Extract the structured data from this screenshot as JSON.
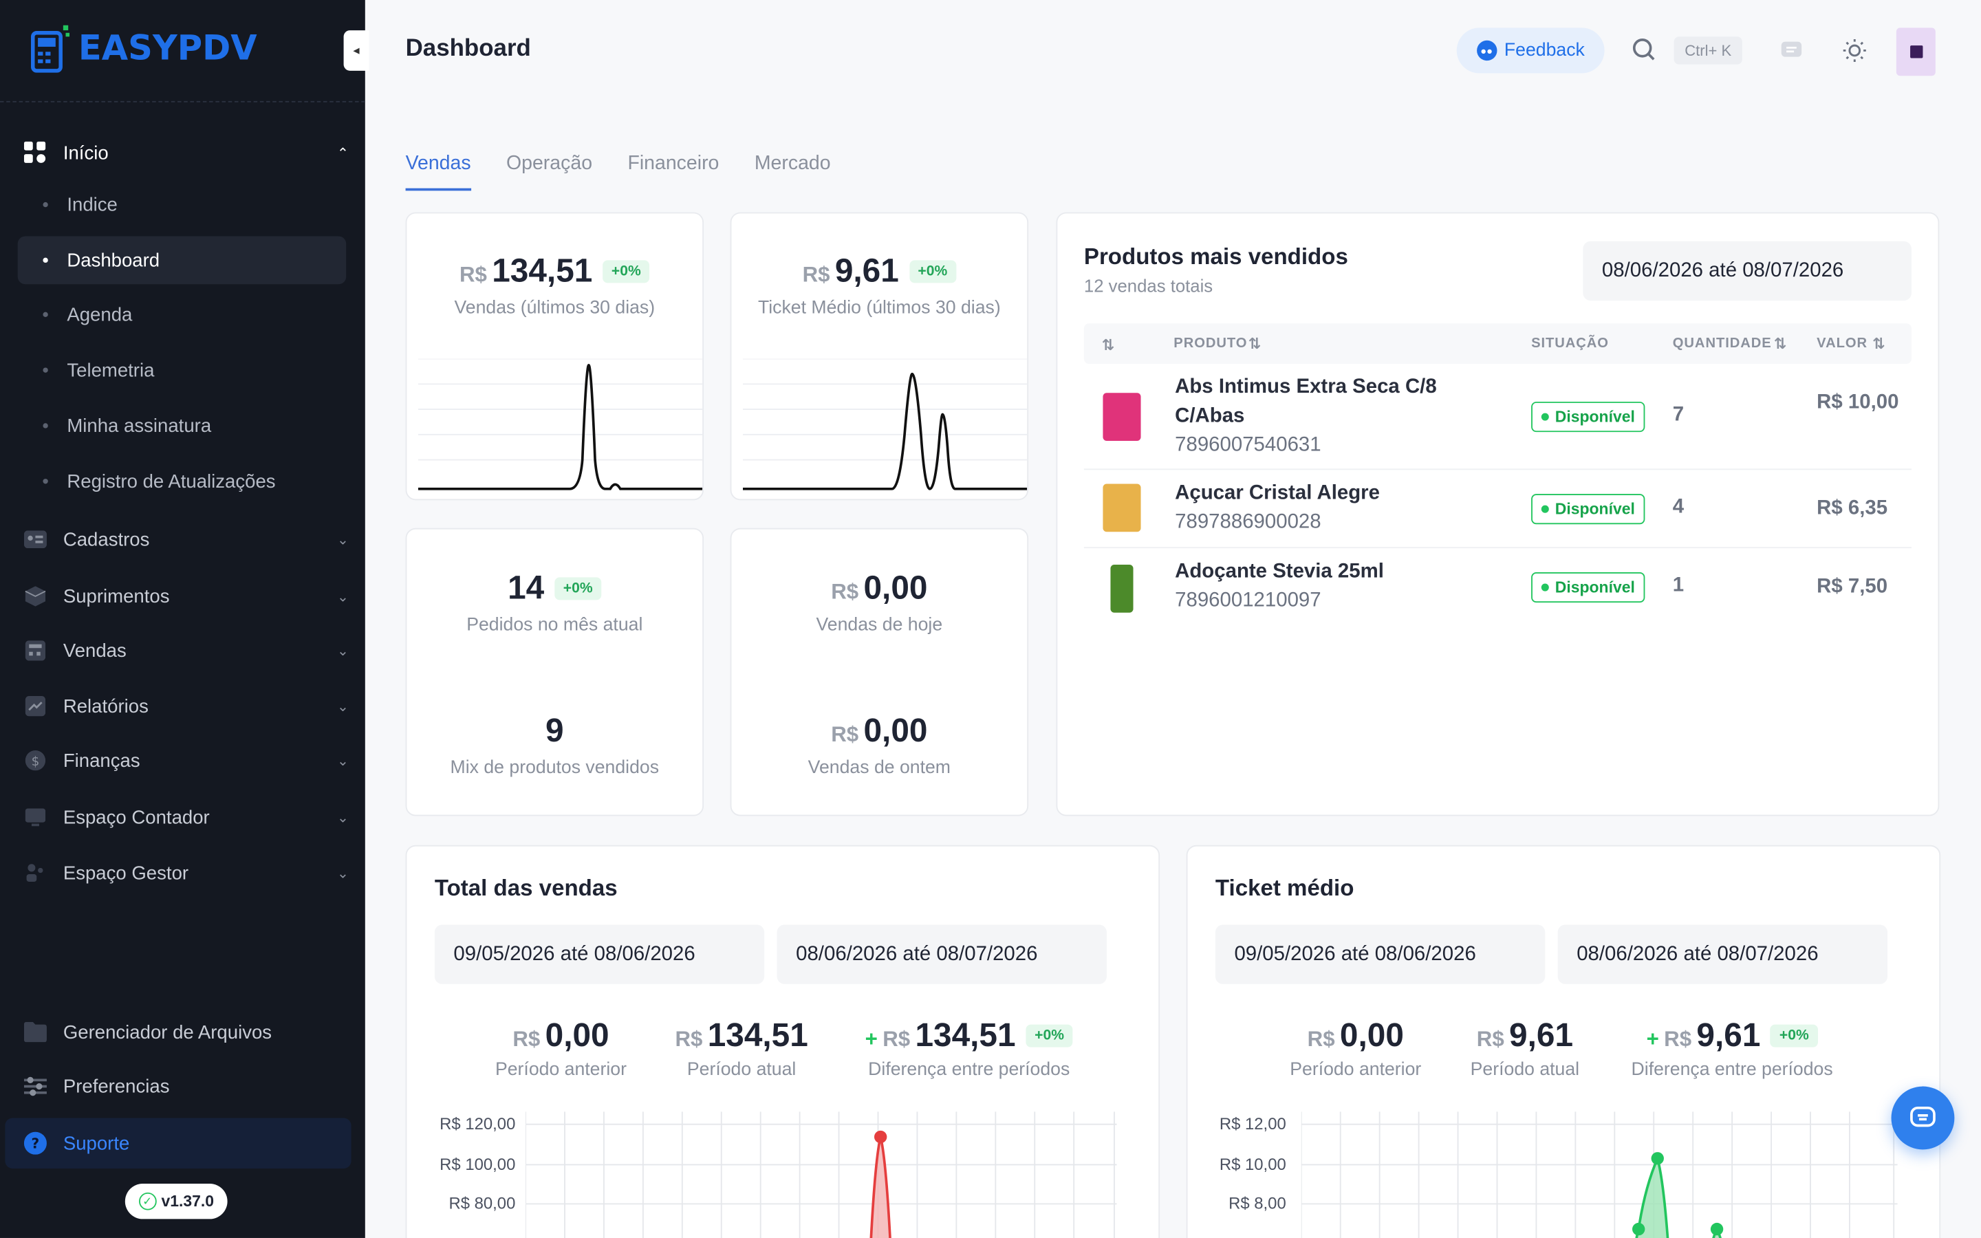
{
  "app": {
    "logo_text": "EASYPDV",
    "version": "v1.37.0",
    "brand_color": "#1f6fe8"
  },
  "sidebar": {
    "inicio_label": "Início",
    "inicio_items": [
      {
        "label": "Indice"
      },
      {
        "label": "Dashboard",
        "active": true
      },
      {
        "label": "Agenda"
      },
      {
        "label": "Telemetria"
      },
      {
        "label": "Minha assinatura"
      },
      {
        "label": "Registro de Atualizações"
      }
    ],
    "groups": [
      {
        "label": "Cadastros",
        "icon": "id-card-icon"
      },
      {
        "label": "Suprimentos",
        "icon": "box-icon"
      },
      {
        "label": "Vendas",
        "icon": "register-icon"
      },
      {
        "label": "Relatórios",
        "icon": "trend-icon"
      },
      {
        "label": "Finanças",
        "icon": "dollar-icon"
      },
      {
        "label": "Espaço Contador",
        "icon": "monitor-icon"
      },
      {
        "label": "Espaço Gestor",
        "icon": "users-icon"
      }
    ],
    "bottom": [
      {
        "label": "Gerenciador de Arquivos",
        "icon": "folder-icon"
      },
      {
        "label": "Preferencias",
        "icon": "sliders-icon"
      }
    ],
    "support_label": "Suporte"
  },
  "header": {
    "title": "Dashboard",
    "feedback_label": "Feedback",
    "shortcut_label": "Ctrl+ K"
  },
  "tabs": [
    {
      "label": "Vendas",
      "active": true
    },
    {
      "label": "Operação"
    },
    {
      "label": "Financeiro"
    },
    {
      "label": "Mercado"
    }
  ],
  "kpis": {
    "currency": "R$",
    "vendas30": {
      "value": "134,51",
      "badge": "+0%",
      "label": "Vendas (últimos 30 dias)"
    },
    "ticket30": {
      "value": "9,61",
      "badge": "+0%",
      "label": "Ticket Médio (últimos 30 dias)"
    },
    "pedidos": {
      "value": "14",
      "badge": "+0%",
      "label": "Pedidos no mês atual"
    },
    "hoje": {
      "value": "0,00",
      "label": "Vendas de hoje"
    },
    "mix": {
      "value": "9",
      "label": "Mix de produtos vendidos"
    },
    "ontem": {
      "value": "0,00",
      "label": "Vendas de ontem"
    }
  },
  "top_products": {
    "title": "Produtos mais vendidos",
    "subtitle": "12 vendas totais",
    "date_range": "08/06/2026 até 08/07/2026",
    "columns": {
      "produto": "PRODUTO",
      "situacao": "SITUAÇÃO",
      "quantidade": "QUANTIDADE",
      "valor": "VALOR"
    },
    "rows": [
      {
        "name": "Abs Intimus Extra Seca C/8 C/Abas",
        "code": "7896007540631",
        "status": "Disponível",
        "qty": "7",
        "value": "R$ 10,00",
        "thumb_color": "#e0337a"
      },
      {
        "name": "Açucar Cristal Alegre",
        "code": "7897886900028",
        "status": "Disponível",
        "qty": "4",
        "value": "R$ 6,35",
        "thumb_color": "#e8b24a"
      },
      {
        "name": "Adoçante Stevia 25ml",
        "code": "7896001210097",
        "status": "Disponível",
        "qty": "1",
        "value": "R$ 7,50",
        "thumb_color": "#4c8a2a"
      }
    ]
  },
  "total_vendas": {
    "title": "Total das vendas",
    "range_prev": "09/05/2026 até 08/06/2026",
    "range_curr": "08/06/2026 até 08/07/2026",
    "prev": {
      "value": "0,00",
      "label": "Período anterior"
    },
    "curr": {
      "value": "134,51",
      "label": "Período atual"
    },
    "diff": {
      "sign": "+",
      "value": "134,51",
      "badge": "+0%",
      "label": "Diferença entre períodos"
    },
    "y_ticks": [
      "R$ 120,00",
      "R$ 100,00",
      "R$ 80,00"
    ]
  },
  "ticket_medio": {
    "title": "Ticket médio",
    "range_prev": "09/05/2026 até 08/06/2026",
    "range_curr": "08/06/2026 até 08/07/2026",
    "prev": {
      "value": "0,00",
      "label": "Período anterior"
    },
    "curr": {
      "value": "9,61",
      "label": "Período atual"
    },
    "diff": {
      "sign": "+",
      "value": "9,61",
      "badge": "+0%",
      "label": "Diferença entre períodos"
    },
    "y_ticks": [
      "R$ 12,00",
      "R$ 10,00",
      "R$ 8,00"
    ]
  }
}
